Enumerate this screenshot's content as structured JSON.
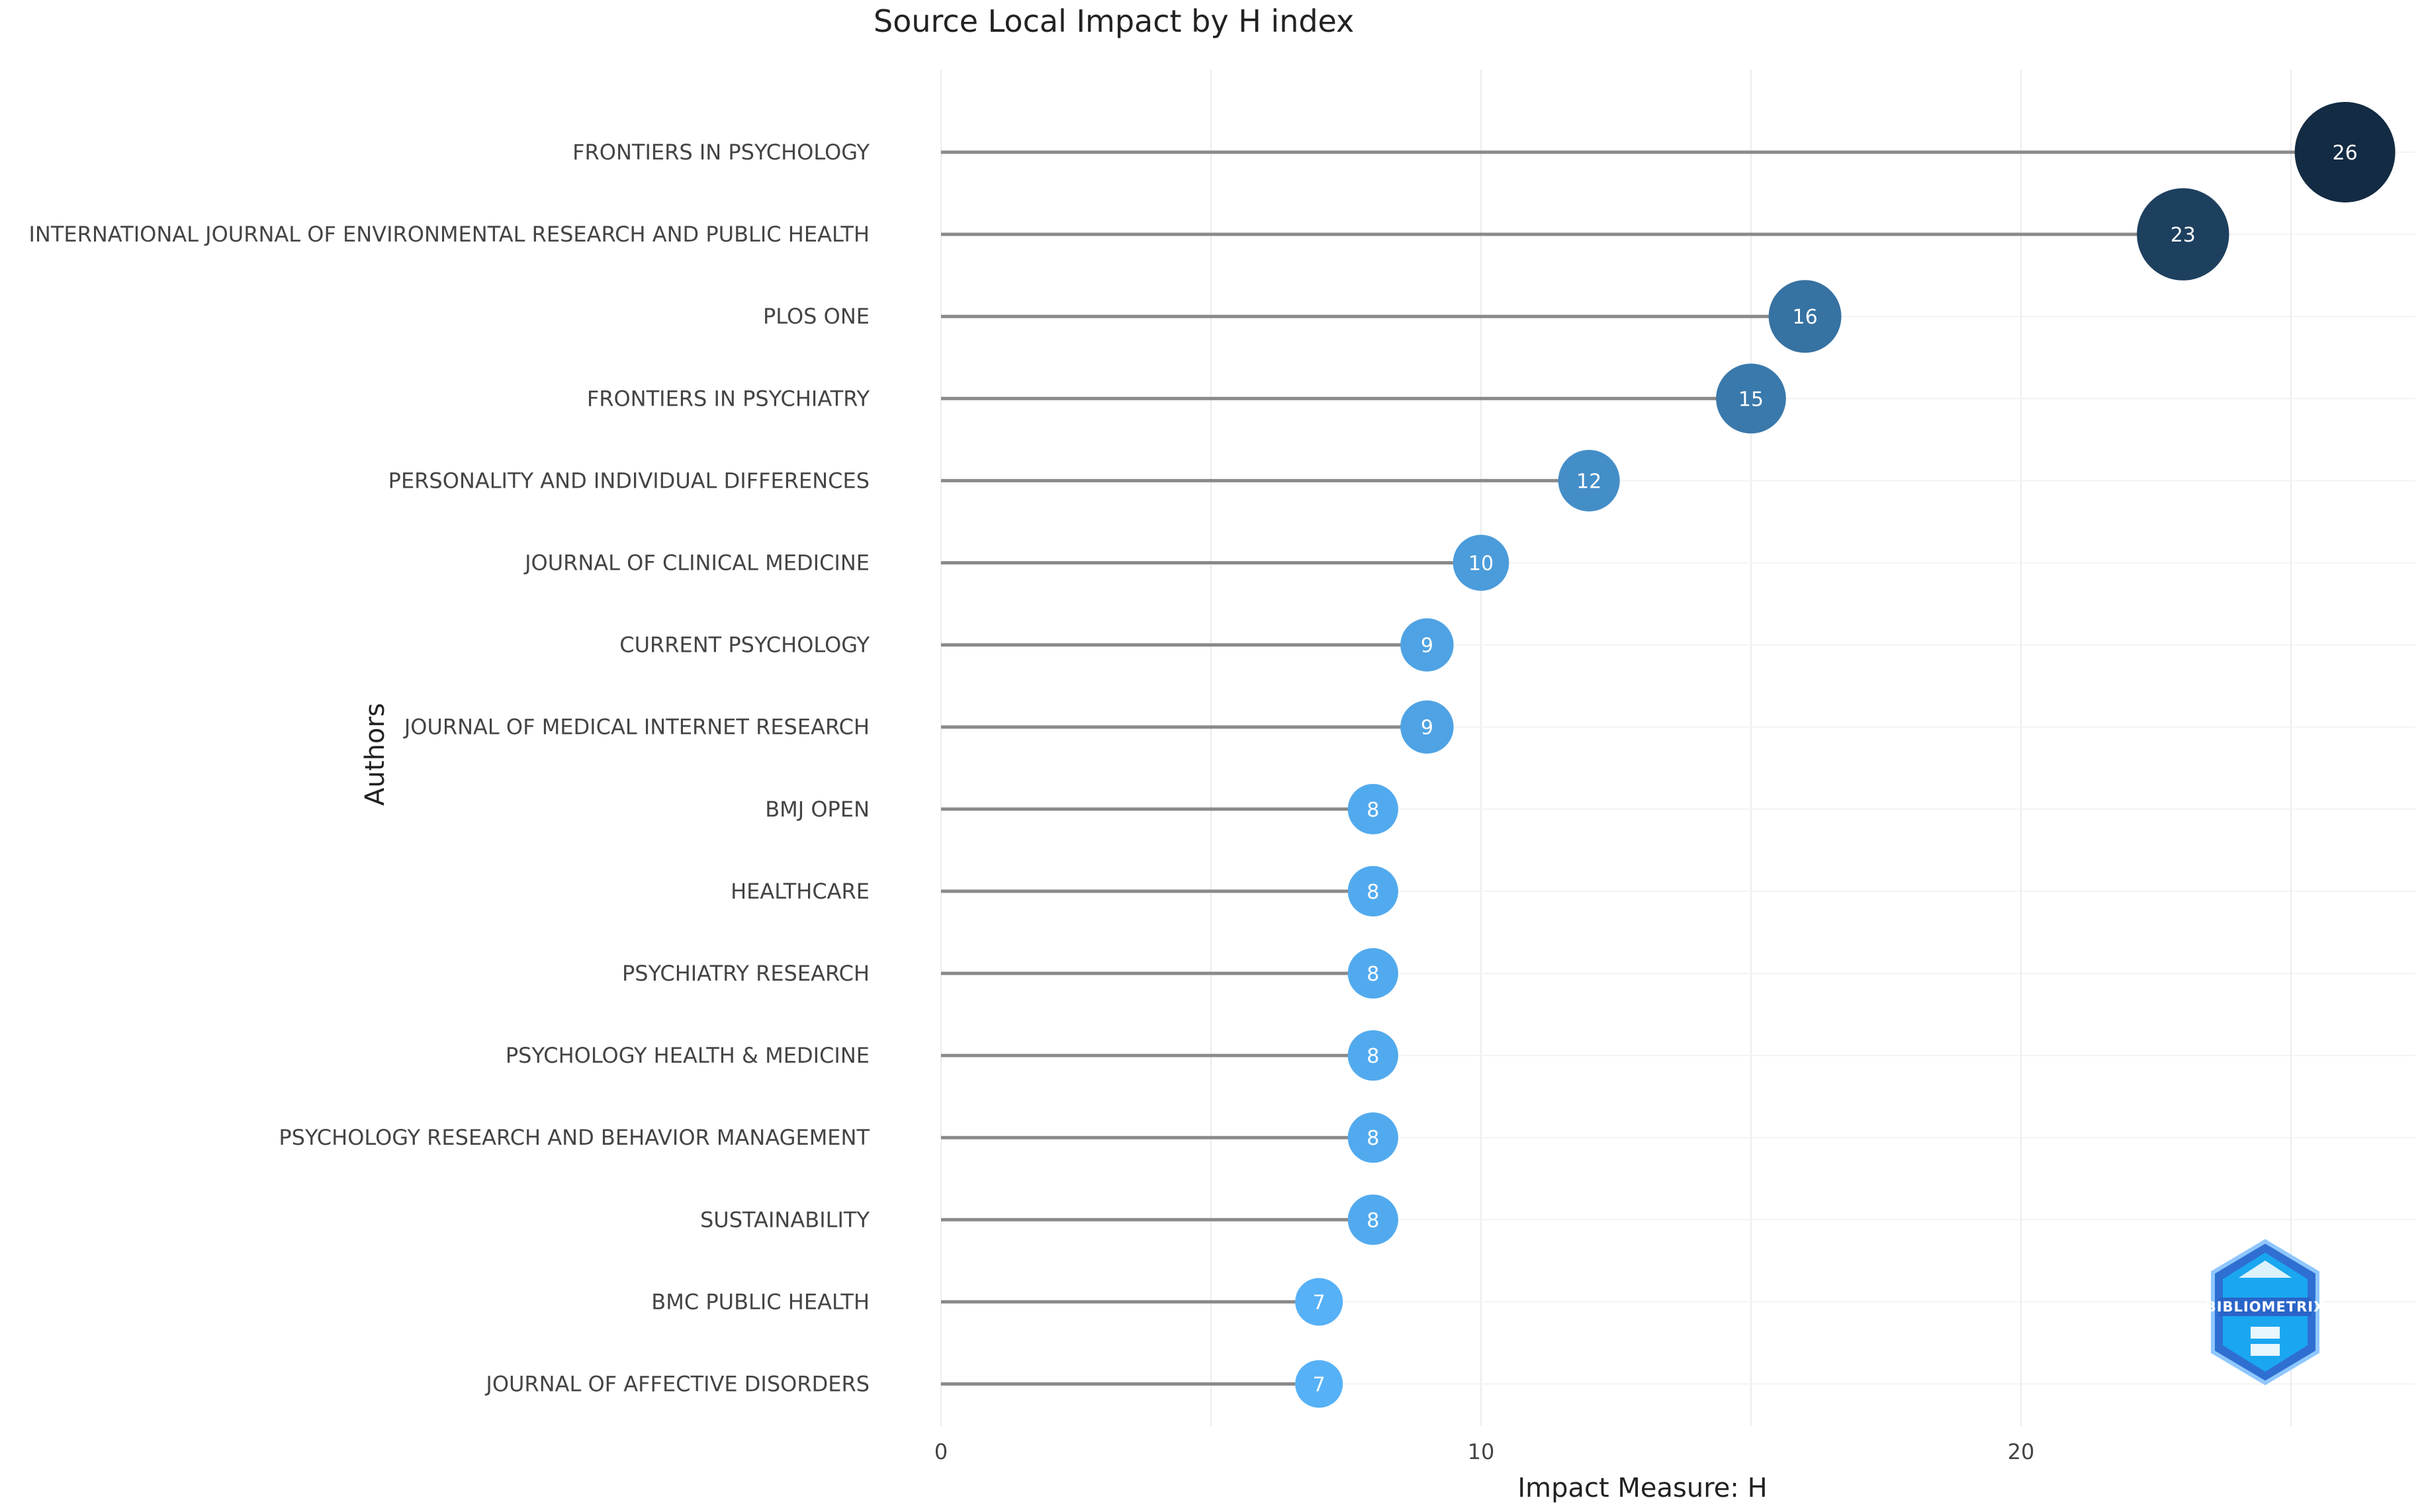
{
  "chart_data": {
    "type": "lollipop",
    "title": "Source Local Impact by H index",
    "xlabel": "Impact Measure: H",
    "ylabel": "Authors",
    "xlim": [
      0,
      27.5
    ],
    "xticks": [
      0,
      10,
      20
    ],
    "grid": true,
    "categories": [
      "FRONTIERS IN PSYCHOLOGY",
      "INTERNATIONAL JOURNAL OF ENVIRONMENTAL RESEARCH AND PUBLIC HEALTH",
      "PLOS ONE",
      "FRONTIERS IN PSYCHIATRY",
      "PERSONALITY AND INDIVIDUAL DIFFERENCES",
      "JOURNAL OF CLINICAL MEDICINE",
      "CURRENT PSYCHOLOGY",
      "JOURNAL OF MEDICAL INTERNET RESEARCH",
      "BMJ OPEN",
      "HEALTHCARE",
      "PSYCHIATRY RESEARCH",
      "PSYCHOLOGY HEALTH & MEDICINE",
      "PSYCHOLOGY RESEARCH AND BEHAVIOR MANAGEMENT",
      "SUSTAINABILITY",
      "BMC PUBLIC HEALTH",
      "JOURNAL OF AFFECTIVE DISORDERS"
    ],
    "values": [
      26,
      23,
      16,
      15,
      12,
      10,
      9,
      9,
      8,
      8,
      8,
      8,
      8,
      8,
      7,
      7
    ],
    "color_scale": {
      "low": "#56B1F7",
      "high": "#132B43"
    }
  },
  "watermark": {
    "text": "BIBLIOMETRIX",
    "icon": "bibliometrix-logo"
  }
}
